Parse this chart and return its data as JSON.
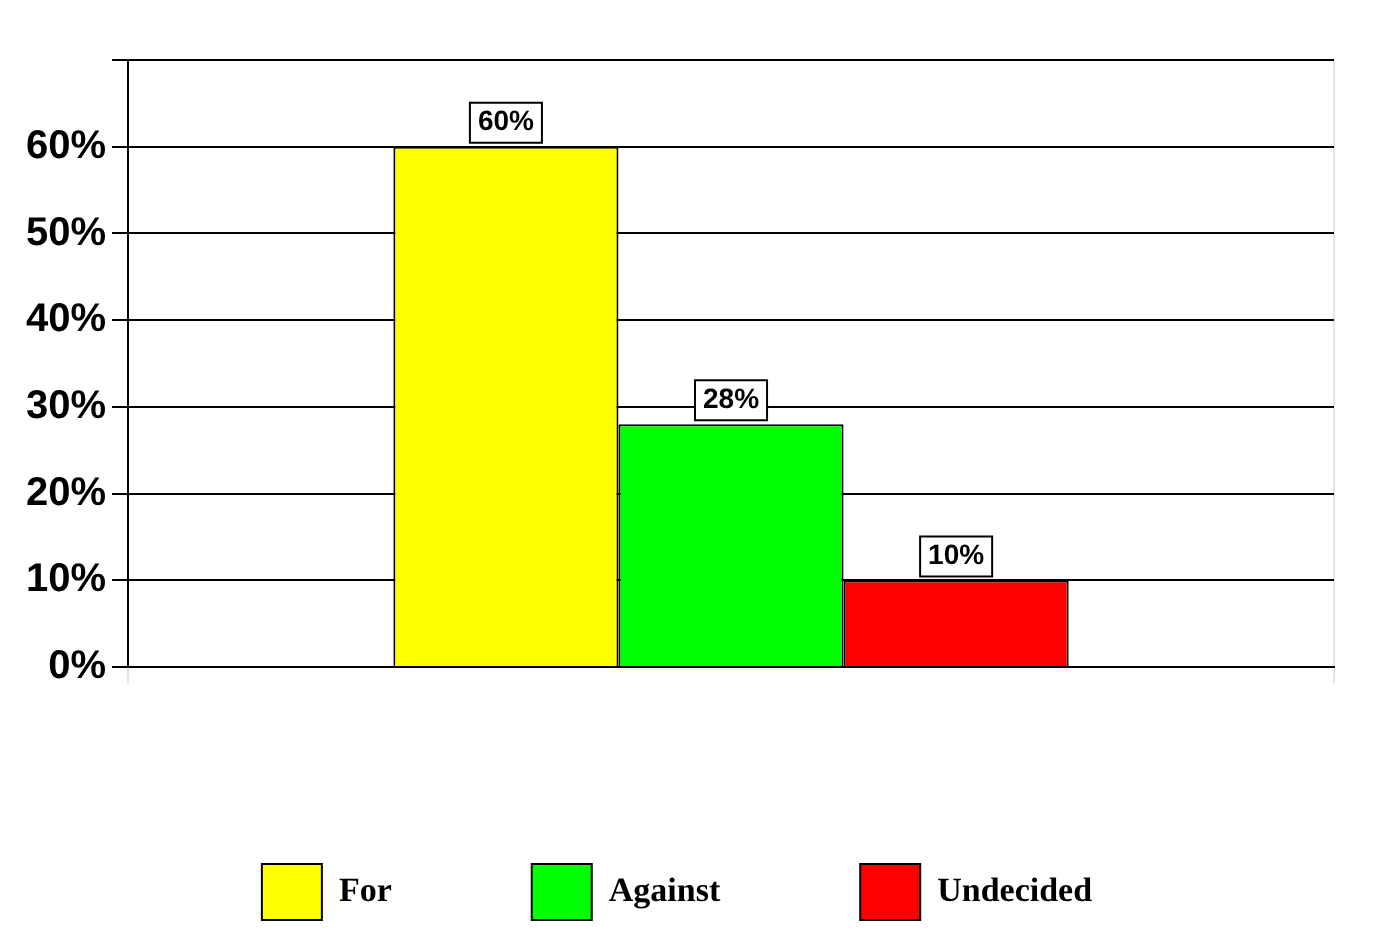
{
  "chart_data": {
    "type": "bar",
    "categories": [
      null
    ],
    "series": [
      {
        "name": "For",
        "color": "#ffff00",
        "values": [
          60
        ],
        "value_labels": [
          "60%"
        ]
      },
      {
        "name": "Against",
        "color": "#00ff00",
        "values": [
          28
        ],
        "value_labels": [
          "28%"
        ]
      },
      {
        "name": "Undecided",
        "color": "#ff0000",
        "values": [
          10
        ],
        "value_labels": [
          "10%"
        ]
      }
    ],
    "ylim": [
      0,
      70
    ],
    "yticks": [
      {
        "value": 0,
        "label": "0%"
      },
      {
        "value": 10,
        "label": "10%"
      },
      {
        "value": 20,
        "label": "20%"
      },
      {
        "value": 30,
        "label": "30%"
      },
      {
        "value": 40,
        "label": "40%"
      },
      {
        "value": 50,
        "label": "50%"
      },
      {
        "value": 60,
        "label": "60%"
      },
      {
        "value": 70,
        "label": null
      }
    ],
    "grid": true,
    "legend": "bottom"
  }
}
